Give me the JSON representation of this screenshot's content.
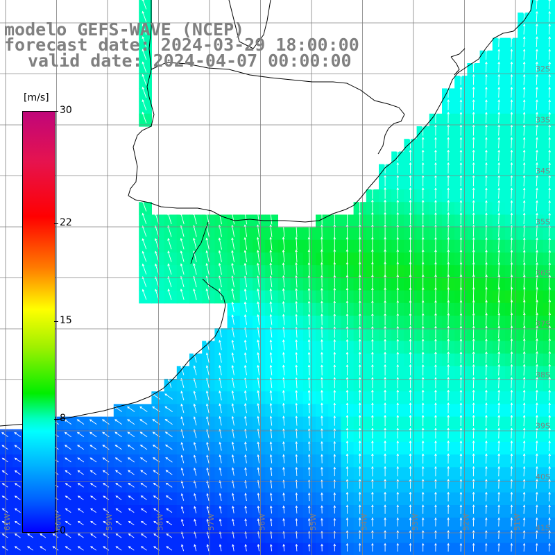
{
  "title": {
    "line1": "modelo GEFS-WAVE (NCEP)",
    "line2": "forecast date: 2024-03-29 18:00:00",
    "line3": "valid date: 2024-04-07 00:00:00"
  },
  "colorbar": {
    "unit": "[m/s]",
    "min": 0,
    "max": 30,
    "ticks": [
      {
        "label": "30",
        "value": 30
      },
      {
        "label": "22",
        "value": 22
      },
      {
        "label": "15",
        "value": 15
      },
      {
        "label": "8",
        "value": 8
      },
      {
        "label": "0",
        "value": 0
      }
    ]
  },
  "latitude_labels": [
    "32S",
    "33S",
    "34S",
    "35S",
    "36S",
    "37S",
    "38S",
    "39S",
    "40S",
    "41S"
  ],
  "longitude_labels": [
    "61W",
    "60W",
    "59W",
    "58W",
    "57W",
    "56W",
    "55W",
    "54W",
    "53W",
    "52W",
    "51W"
  ],
  "variable": "wind speed",
  "colors": {
    "land": "#ffffff",
    "coast": "#000000",
    "grid": "#808080",
    "arrows": "#ffffff",
    "label": "#808080"
  }
}
